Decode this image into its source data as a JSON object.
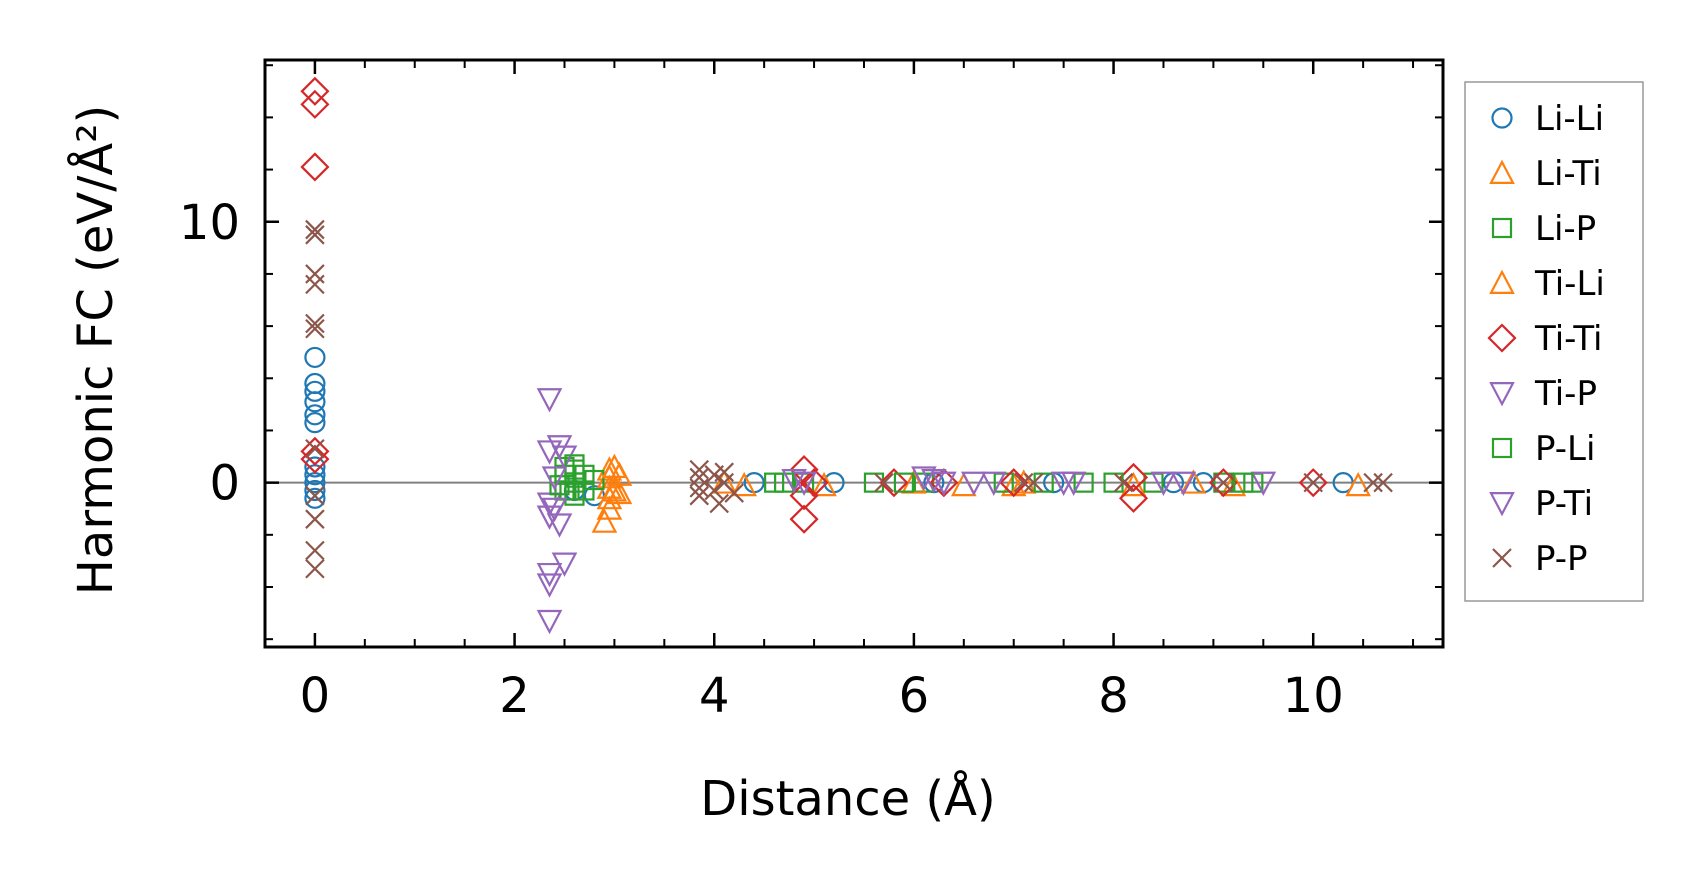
{
  "chart_data": {
    "type": "scatter",
    "title": "",
    "xlabel": "Distance (Å)",
    "ylabel": "Harmonic FC (eV/Å²)",
    "xlim": [
      -0.5,
      11.3
    ],
    "ylim": [
      -6.3,
      16.2
    ],
    "x_ticks": [
      0,
      2,
      4,
      6,
      8,
      10
    ],
    "y_ticks": [
      0,
      10
    ],
    "x_tick_labels": [
      "0",
      "2",
      "4",
      "6",
      "8",
      "10"
    ],
    "y_tick_labels": [
      "0",
      "10"
    ],
    "zero_line": true,
    "grid": false,
    "legend_position": "right, outside plot",
    "series": [
      {
        "name": "Li-Li",
        "marker": "circle",
        "color": "#1f77b4",
        "points": [
          [
            0,
            4.8
          ],
          [
            0,
            3.8
          ],
          [
            0,
            3.5
          ],
          [
            0,
            3.1
          ],
          [
            0,
            2.6
          ],
          [
            0,
            2.3
          ],
          [
            0,
            0.6
          ],
          [
            0,
            0.3
          ],
          [
            0,
            0
          ],
          [
            0,
            -0.3
          ],
          [
            0,
            -0.6
          ],
          [
            2.6,
            -0.3
          ],
          [
            2.8,
            -0.5
          ],
          [
            4.4,
            0
          ],
          [
            5.2,
            0
          ],
          [
            6.2,
            0
          ],
          [
            7.4,
            0
          ],
          [
            8.6,
            0
          ],
          [
            8.9,
            0
          ],
          [
            10.3,
            0
          ]
        ]
      },
      {
        "name": "Li-Ti",
        "marker": "triangle-up",
        "color": "#ff7f0e",
        "points": [
          [
            2.95,
            0.5
          ],
          [
            2.95,
            0.2
          ],
          [
            2.95,
            -0.2
          ],
          [
            2.95,
            -0.6
          ],
          [
            2.95,
            -1.0
          ],
          [
            2.9,
            -1.5
          ],
          [
            3.05,
            0.3
          ],
          [
            3.05,
            -0.4
          ],
          [
            4.3,
            -0.1
          ],
          [
            5.1,
            -0.1
          ],
          [
            6.5,
            -0.1
          ],
          [
            7.0,
            -0.1
          ],
          [
            8.2,
            -0.1
          ],
          [
            9.2,
            -0.1
          ],
          [
            10.45,
            -0.1
          ]
        ]
      },
      {
        "name": "Li-P",
        "marker": "square",
        "color": "#2ca02c",
        "points": [
          [
            2.5,
            0.6
          ],
          [
            2.5,
            0.3
          ],
          [
            2.5,
            -0.3
          ],
          [
            2.6,
            0.5
          ],
          [
            2.6,
            0
          ],
          [
            2.6,
            -0.5
          ],
          [
            2.7,
            0.3
          ],
          [
            2.7,
            -0.3
          ],
          [
            2.8,
            0.1
          ],
          [
            4.6,
            0
          ],
          [
            4.9,
            0
          ],
          [
            5.6,
            0
          ],
          [
            6.1,
            0
          ],
          [
            6.9,
            0
          ],
          [
            7.7,
            0
          ],
          [
            8.4,
            0
          ],
          [
            9.1,
            0
          ],
          [
            9.4,
            0
          ]
        ]
      },
      {
        "name": "Ti-Li",
        "marker": "triangle-up",
        "color": "#ff7f0e",
        "points": [
          [
            3.0,
            0.6
          ],
          [
            3.0,
            -0.3
          ],
          [
            4.1,
            0
          ],
          [
            6.0,
            0
          ],
          [
            7.1,
            0
          ],
          [
            8.8,
            0
          ]
        ]
      },
      {
        "name": "Ti-Ti",
        "marker": "diamond",
        "color": "#d62728",
        "points": [
          [
            0,
            15
          ],
          [
            0,
            14.5
          ],
          [
            0,
            12.1
          ],
          [
            0,
            1.2
          ],
          [
            0,
            0.9
          ],
          [
            4.9,
            0.5
          ],
          [
            4.9,
            -0.5
          ],
          [
            4.9,
            -1.4
          ],
          [
            5.0,
            0
          ],
          [
            5.8,
            0
          ],
          [
            6.3,
            0
          ],
          [
            7.0,
            0
          ],
          [
            8.2,
            0.2
          ],
          [
            8.2,
            -0.6
          ],
          [
            9.1,
            0
          ],
          [
            10.0,
            0
          ]
        ]
      },
      {
        "name": "Ti-P",
        "marker": "triangle-down",
        "color": "#9467bd",
        "points": [
          [
            2.35,
            3.2
          ],
          [
            2.35,
            1.2
          ],
          [
            2.35,
            -0.8
          ],
          [
            2.35,
            -1.3
          ],
          [
            2.35,
            -3.5
          ],
          [
            2.35,
            -3.9
          ],
          [
            2.35,
            -5.3
          ],
          [
            2.45,
            1.4
          ],
          [
            2.45,
            -1.6
          ],
          [
            2.5,
            -3.1
          ],
          [
            2.5,
            1.0
          ],
          [
            4.9,
            0
          ],
          [
            6.1,
            0.2
          ],
          [
            6.3,
            0
          ],
          [
            6.6,
            0
          ],
          [
            7.6,
            0
          ],
          [
            8.7,
            0
          ],
          [
            9.5,
            0
          ]
        ]
      },
      {
        "name": "P-Li",
        "marker": "square",
        "color": "#2ca02c",
        "points": [
          [
            2.45,
            -0.1
          ],
          [
            2.55,
            -0.3
          ],
          [
            2.6,
            0.7
          ],
          [
            4.7,
            0
          ],
          [
            5.9,
            0
          ],
          [
            7.3,
            0
          ],
          [
            8.0,
            0
          ],
          [
            9.3,
            0
          ]
        ]
      },
      {
        "name": "P-Ti",
        "marker": "triangle-down",
        "color": "#9467bd",
        "points": [
          [
            2.4,
            -1.0
          ],
          [
            2.4,
            0.2
          ],
          [
            4.8,
            0.1
          ],
          [
            6.2,
            0.1
          ],
          [
            6.8,
            0
          ],
          [
            7.5,
            0
          ],
          [
            8.5,
            0
          ]
        ]
      },
      {
        "name": "P-P",
        "marker": "x",
        "color": "#8c564b",
        "points": [
          [
            0,
            9.7
          ],
          [
            0,
            9.5
          ],
          [
            0,
            8.0
          ],
          [
            0,
            7.6
          ],
          [
            0,
            6.1
          ],
          [
            0,
            5.9
          ],
          [
            0,
            1.3
          ],
          [
            0,
            -0.5
          ],
          [
            0,
            -1.4
          ],
          [
            0,
            -2.6
          ],
          [
            0,
            -3.3
          ],
          [
            3.85,
            0.5
          ],
          [
            3.85,
            0.2
          ],
          [
            3.85,
            -0.2
          ],
          [
            3.85,
            -0.5
          ],
          [
            4.0,
            0.3
          ],
          [
            4.0,
            -0.3
          ],
          [
            4.05,
            -0.8
          ],
          [
            4.1,
            0.4
          ],
          [
            4.1,
            0
          ],
          [
            4.2,
            -0.4
          ],
          [
            5.7,
            0
          ],
          [
            7.1,
            0
          ],
          [
            7.2,
            0
          ],
          [
            8.1,
            0
          ],
          [
            9.1,
            0
          ],
          [
            10.0,
            0
          ],
          [
            10.6,
            0
          ],
          [
            10.7,
            0
          ]
        ]
      }
    ]
  }
}
